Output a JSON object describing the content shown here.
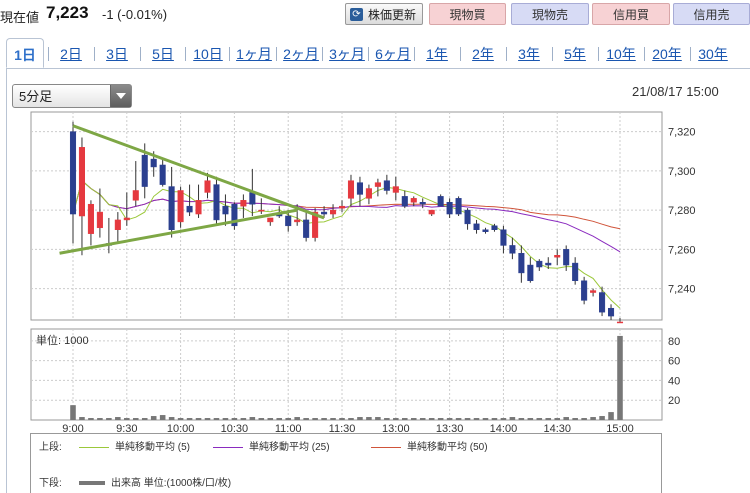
{
  "header": {
    "price_label": "現在値",
    "price_value": "7,223",
    "price_change": "-1 (-0.01%)",
    "refresh_label": "株価更新",
    "buttons": [
      {
        "label": "現物買",
        "kind": "buy"
      },
      {
        "label": "現物売",
        "kind": "sell"
      },
      {
        "label": "信用買",
        "kind": "buy"
      },
      {
        "label": "信用売",
        "kind": "sell"
      }
    ]
  },
  "tabs": [
    {
      "label": "1日",
      "active": true
    },
    {
      "label": "2日"
    },
    {
      "label": "3日"
    },
    {
      "label": "5日"
    },
    {
      "label": "10日"
    },
    {
      "label": "1ヶ月"
    },
    {
      "label": "2ヶ月"
    },
    {
      "label": "3ヶ月"
    },
    {
      "label": "6ヶ月"
    },
    {
      "label": "1年"
    },
    {
      "label": "2年"
    },
    {
      "label": "3年"
    },
    {
      "label": "5年"
    },
    {
      "label": "10年"
    },
    {
      "label": "20年"
    },
    {
      "label": "30年"
    }
  ],
  "interval_select": {
    "value": "5分足"
  },
  "datetime": "21/08/17 15:00",
  "colors": {
    "up": "#e5393f",
    "down": "#2b3f8f",
    "ma5": "#9bc83a",
    "ma25": "#8a2bbf",
    "ma50": "#d0543a",
    "trend": "#7ea745",
    "volume": "#777777"
  },
  "chart_data": {
    "type": "candlestick",
    "price_axis": {
      "ticks": [
        7240,
        7260,
        7280,
        7300,
        7320
      ],
      "ylim": [
        7224,
        7330
      ]
    },
    "volume_axis": {
      "unit_label": "単位: 1000",
      "ticks": [
        20,
        40,
        60,
        80
      ],
      "ylim": [
        0,
        92
      ]
    },
    "x_ticks": [
      "9:00",
      "9:30",
      "10:00",
      "10:30",
      "11:00",
      "11:30",
      "13:00",
      "13:30",
      "14:00",
      "14:30",
      "15:00"
    ],
    "candles": [
      [
        7320,
        7325,
        7263,
        7278
      ],
      [
        7277,
        7317,
        7257,
        7312
      ],
      [
        7268,
        7285,
        7262,
        7283
      ],
      [
        7271,
        7291,
        7266,
        7279
      ],
      [
        7263,
        7276,
        7258,
        7262
      ],
      [
        7270,
        7279,
        7264,
        7275
      ],
      [
        7275,
        7289,
        7272,
        7276
      ],
      [
        7285,
        7305,
        7282,
        7290
      ],
      [
        7308,
        7314,
        7286,
        7292
      ],
      [
        7306,
        7310,
        7297,
        7302
      ],
      [
        7303,
        7306,
        7292,
        7293
      ],
      [
        7292,
        7302,
        7266,
        7270
      ],
      [
        7274,
        7292,
        7271,
        7290
      ],
      [
        7282,
        7293,
        7277,
        7279
      ],
      [
        7278,
        7293,
        7276,
        7285
      ],
      [
        7289,
        7299,
        7286,
        7295
      ],
      [
        7293,
        7297,
        7273,
        7275
      ],
      [
        7282,
        7288,
        7272,
        7278
      ],
      [
        7283,
        7284,
        7270,
        7272
      ],
      [
        7282,
        7288,
        7276,
        7285
      ],
      [
        7289,
        7301,
        7277,
        7283
      ],
      [
        7280,
        7286,
        7278,
        7280
      ],
      [
        7274,
        7276,
        7272,
        7276
      ],
      [
        7278,
        7282,
        7276,
        7277
      ],
      [
        7277,
        7280,
        7269,
        7272
      ],
      [
        7274,
        7283,
        7272,
        7275
      ],
      [
        7275,
        7280,
        7264,
        7266
      ],
      [
        7266,
        7281,
        7264,
        7279
      ],
      [
        7279,
        7282,
        7276,
        7278
      ],
      [
        7278,
        7283,
        7276,
        7280
      ],
      [
        7281,
        7285,
        7279,
        7282
      ],
      [
        7286,
        7298,
        7282,
        7295
      ],
      [
        7294,
        7297,
        7282,
        7288
      ],
      [
        7286,
        7293,
        7283,
        7291
      ],
      [
        7292,
        7296,
        7287,
        7294
      ],
      [
        7295,
        7298,
        7288,
        7290
      ],
      [
        7289,
        7297,
        7285,
        7292
      ],
      [
        7287,
        7290,
        7281,
        7282
      ],
      [
        7284,
        7287,
        7282,
        7286
      ],
      [
        7284,
        7286,
        7281,
        7283
      ],
      [
        7278,
        7280,
        7277,
        7280
      ],
      [
        7287,
        7288,
        7282,
        7282
      ],
      [
        7284,
        7286,
        7276,
        7278
      ],
      [
        7286,
        7287,
        7277,
        7278
      ],
      [
        7280,
        7281,
        7270,
        7273
      ],
      [
        7273,
        7275,
        7268,
        7270
      ],
      [
        7270,
        7271,
        7268,
        7269
      ],
      [
        7272,
        7273,
        7269,
        7270
      ],
      [
        7270,
        7272,
        7258,
        7262
      ],
      [
        7262,
        7266,
        7255,
        7258
      ],
      [
        7258,
        7262,
        7243,
        7248
      ],
      [
        7252,
        7256,
        7243,
        7244
      ],
      [
        7254,
        7255,
        7249,
        7251
      ],
      [
        7253,
        7256,
        7250,
        7252
      ],
      [
        7256,
        7260,
        7252,
        7257
      ],
      [
        7260,
        7262,
        7249,
        7252
      ],
      [
        7253,
        7256,
        7242,
        7244
      ],
      [
        7244,
        7246,
        7232,
        7234
      ],
      [
        7238,
        7240,
        7236,
        7239
      ],
      [
        7238,
        7241,
        7226,
        7228
      ],
      [
        7230,
        7232,
        7224,
        7226
      ],
      [
        7223,
        7225,
        7223,
        7223
      ]
    ],
    "volume": [
      15,
      3,
      2,
      2,
      2,
      3,
      2,
      2,
      2,
      4,
      5,
      3,
      2,
      2,
      2,
      2,
      2,
      2,
      2,
      2,
      3,
      2,
      2,
      2,
      2,
      3,
      2,
      2,
      2,
      2,
      2,
      2,
      3,
      3,
      3,
      2,
      2,
      2,
      2,
      2,
      2,
      2,
      2,
      2,
      2,
      2,
      2,
      2,
      2,
      3,
      2,
      2,
      2,
      2,
      2,
      3,
      2,
      2,
      3,
      4,
      8,
      85
    ],
    "legend": {
      "upper_label": "上段:",
      "lower_label": "下段:",
      "ma5": "単純移動平均 (5)",
      "ma25": "単純移動平均 (25)",
      "ma50": "単純移動平均 (50)",
      "volume": "出来高 単位:(1000株/口/枚)"
    }
  }
}
